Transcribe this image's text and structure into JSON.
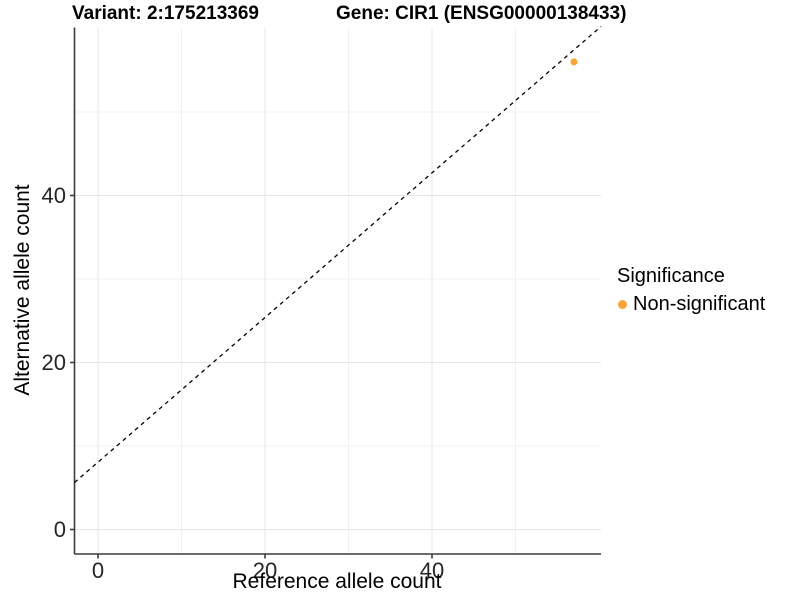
{
  "header": {
    "variant_title": "Variant: 2:175213369",
    "gene_title": "Gene: CIR1 (ENSG00000138433)"
  },
  "chart_data": {
    "type": "scatter",
    "title": "Variant: 2:175213369 / Gene: CIR1 (ENSG00000138433)",
    "xlabel": "Reference allele count",
    "ylabel": "Alternative allele count",
    "xlim": [
      -2.85,
      59.85
    ],
    "ylim": [
      -2.85,
      59.85
    ],
    "x_ticks": [
      0,
      20,
      40
    ],
    "y_ticks": [
      0,
      20,
      40
    ],
    "x_minor_ticks": [
      10,
      30,
      50
    ],
    "y_minor_ticks": [
      10,
      30,
      50
    ],
    "grid": "major and minor gridlines, light gray, white panel",
    "reference_line": {
      "type": "identity y=x",
      "style": "dashed",
      "color": "#000000"
    },
    "series": [
      {
        "name": "Non-significant",
        "color": "#FAA43A",
        "points": [
          {
            "x": 57,
            "y": 56
          }
        ]
      }
    ],
    "legend_position": "right"
  },
  "legend": {
    "title": "Significance",
    "items": [
      {
        "label": "Non-significant",
        "color": "#FAA43A"
      }
    ]
  },
  "colors": {
    "point": "#FAA43A",
    "axis_line": "#3C3C3C",
    "grid_major": "#E7E7E7",
    "grid_minor": "#F0F0F0",
    "tick_text": "#262626",
    "dashed_line": "#000000",
    "background": "#FFFFFF"
  }
}
